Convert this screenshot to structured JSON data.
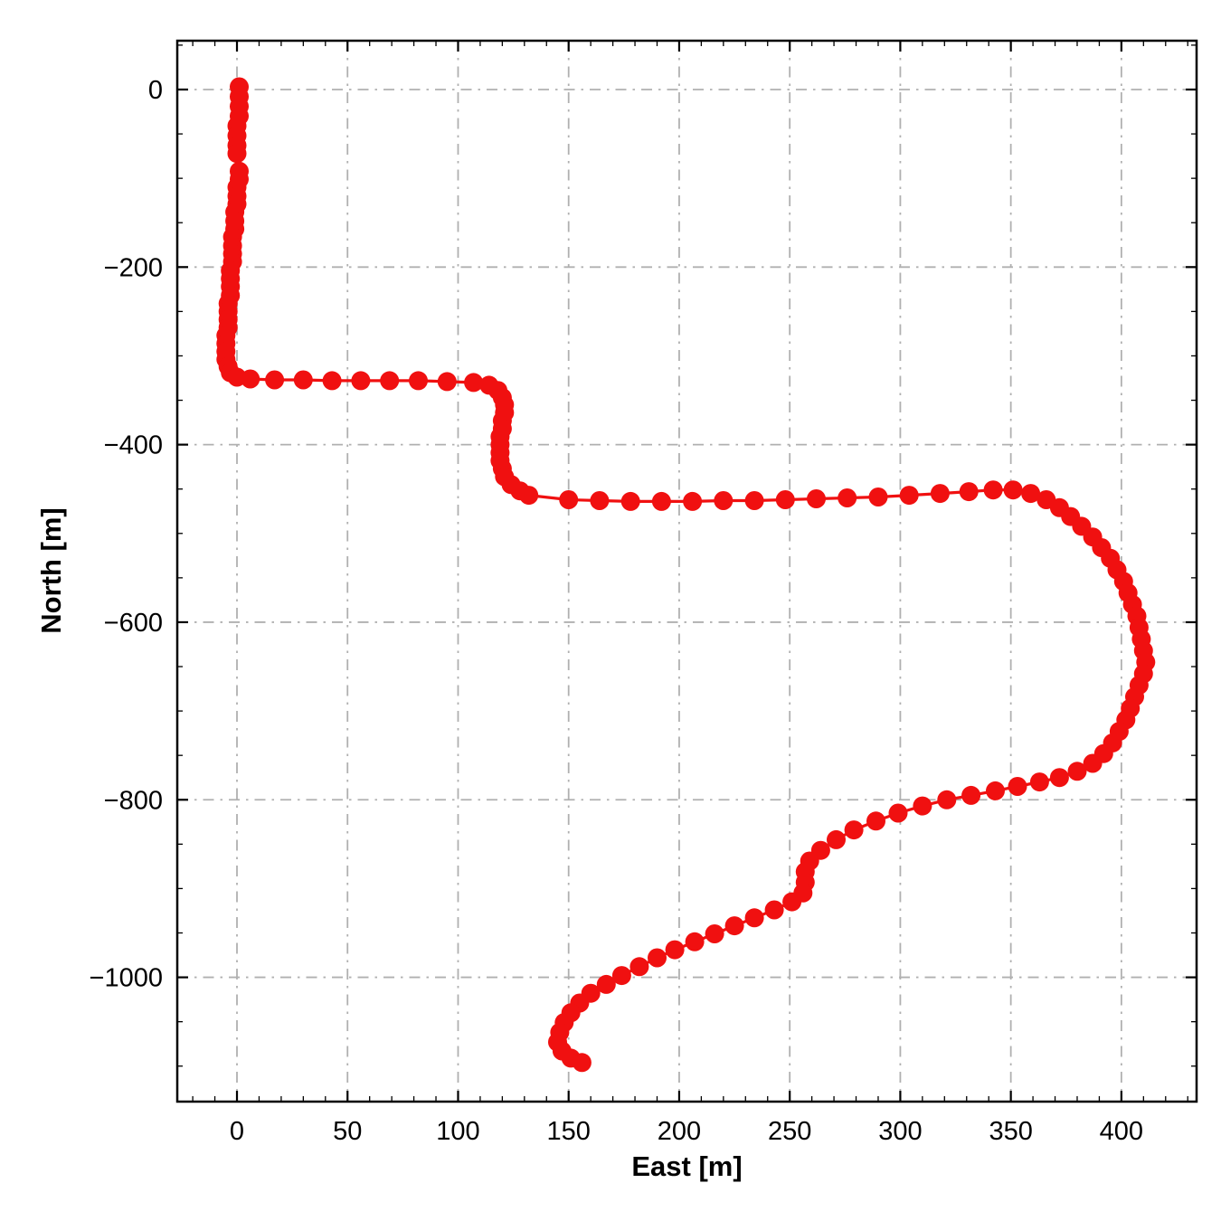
{
  "page": {
    "background": "#ffffff"
  },
  "chart_data": {
    "type": "scatter",
    "title": "",
    "xlabel": "East [m]",
    "ylabel": "North [m]",
    "xlim": [
      -27,
      434
    ],
    "ylim": [
      -1140,
      55
    ],
    "grid": true,
    "grid_style": "dash-dot",
    "legend_position": "none",
    "marker_color": "#f01010",
    "grid_color": "#b0b0b0",
    "axis_color": "#000000",
    "xticks": {
      "values": [
        0,
        50,
        100,
        150,
        200,
        250,
        300,
        350,
        400
      ],
      "labels": [
        "0",
        "50",
        "100",
        "150",
        "200",
        "250",
        "300",
        "350",
        "400"
      ]
    },
    "yticks": {
      "values": [
        0,
        -200,
        -400,
        -600,
        -800,
        -1000
      ],
      "labels": [
        "0",
        "−200",
        "−400",
        "−600",
        "−800",
        "−1000"
      ]
    },
    "line_breaks": [
      8
    ],
    "points": [
      [
        1,
        3
      ],
      [
        1,
        -8
      ],
      [
        1,
        -19
      ],
      [
        1,
        -30
      ],
      [
        0,
        -41
      ],
      [
        0,
        -52
      ],
      [
        0,
        -63
      ],
      [
        0,
        -72
      ],
      [
        1,
        -92
      ],
      [
        1,
        -101
      ],
      [
        0,
        -110
      ],
      [
        0,
        -120
      ],
      [
        0,
        -129
      ],
      [
        -1,
        -138
      ],
      [
        -1,
        -148
      ],
      [
        -1,
        -157
      ],
      [
        -2,
        -166
      ],
      [
        -2,
        -176
      ],
      [
        -2,
        -185
      ],
      [
        -2,
        -194
      ],
      [
        -3,
        -204
      ],
      [
        -3,
        -213
      ],
      [
        -3,
        -222
      ],
      [
        -3,
        -232
      ],
      [
        -4,
        -241
      ],
      [
        -4,
        -250
      ],
      [
        -4,
        -259
      ],
      [
        -4,
        -268
      ],
      [
        -5,
        -277
      ],
      [
        -5,
        -286
      ],
      [
        -5,
        -295
      ],
      [
        -5,
        -304
      ],
      [
        -4,
        -312
      ],
      [
        -3,
        -319
      ],
      [
        0,
        -324
      ],
      [
        6,
        -326
      ],
      [
        17,
        -327
      ],
      [
        30,
        -327
      ],
      [
        43,
        -328
      ],
      [
        56,
        -328
      ],
      [
        69,
        -328
      ],
      [
        82,
        -328
      ],
      [
        95,
        -329
      ],
      [
        107,
        -330
      ],
      [
        114,
        -333
      ],
      [
        118,
        -339
      ],
      [
        120,
        -347
      ],
      [
        121,
        -355
      ],
      [
        121,
        -364
      ],
      [
        120,
        -373
      ],
      [
        120,
        -382
      ],
      [
        119,
        -391
      ],
      [
        119,
        -400
      ],
      [
        119,
        -409
      ],
      [
        119,
        -418
      ],
      [
        120,
        -427
      ],
      [
        121,
        -436
      ],
      [
        124,
        -445
      ],
      [
        128,
        -452
      ],
      [
        132,
        -457
      ],
      [
        150,
        -462
      ],
      [
        164,
        -463
      ],
      [
        178,
        -464
      ],
      [
        192,
        -464
      ],
      [
        206,
        -464
      ],
      [
        220,
        -463
      ],
      [
        234,
        -463
      ],
      [
        248,
        -462
      ],
      [
        262,
        -461
      ],
      [
        276,
        -460
      ],
      [
        290,
        -459
      ],
      [
        304,
        -457
      ],
      [
        318,
        -455
      ],
      [
        331,
        -453
      ],
      [
        342,
        -451
      ],
      [
        351,
        -451
      ],
      [
        359,
        -455
      ],
      [
        366,
        -462
      ],
      [
        372,
        -471
      ],
      [
        377,
        -481
      ],
      [
        382,
        -492
      ],
      [
        387,
        -504
      ],
      [
        391,
        -516
      ],
      [
        395,
        -528
      ],
      [
        398,
        -541
      ],
      [
        401,
        -554
      ],
      [
        403,
        -567
      ],
      [
        405,
        -580
      ],
      [
        407,
        -593
      ],
      [
        408,
        -606
      ],
      [
        409,
        -619
      ],
      [
        410,
        -632
      ],
      [
        411,
        -645
      ],
      [
        410,
        -658
      ],
      [
        408,
        -671
      ],
      [
        406,
        -684
      ],
      [
        404,
        -697
      ],
      [
        402,
        -710
      ],
      [
        399,
        -723
      ],
      [
        396,
        -736
      ],
      [
        392,
        -748
      ],
      [
        387,
        -759
      ],
      [
        380,
        -768
      ],
      [
        372,
        -775
      ],
      [
        363,
        -780
      ],
      [
        353,
        -785
      ],
      [
        343,
        -790
      ],
      [
        332,
        -795
      ],
      [
        321,
        -800
      ],
      [
        310,
        -807
      ],
      [
        299,
        -815
      ],
      [
        289,
        -824
      ],
      [
        279,
        -834
      ],
      [
        271,
        -845
      ],
      [
        264,
        -857
      ],
      [
        259,
        -869
      ],
      [
        257,
        -881
      ],
      [
        257,
        -893
      ],
      [
        256,
        -905
      ],
      [
        251,
        -915
      ],
      [
        243,
        -924
      ],
      [
        234,
        -933
      ],
      [
        225,
        -942
      ],
      [
        216,
        -951
      ],
      [
        207,
        -960
      ],
      [
        198,
        -969
      ],
      [
        190,
        -978
      ],
      [
        182,
        -988
      ],
      [
        174,
        -998
      ],
      [
        167,
        -1008
      ],
      [
        160,
        -1018
      ],
      [
        155,
        -1029
      ],
      [
        151,
        -1040
      ],
      [
        148,
        -1051
      ],
      [
        146,
        -1062
      ],
      [
        145,
        -1073
      ],
      [
        147,
        -1083
      ],
      [
        151,
        -1091
      ],
      [
        156,
        -1096
      ]
    ]
  }
}
